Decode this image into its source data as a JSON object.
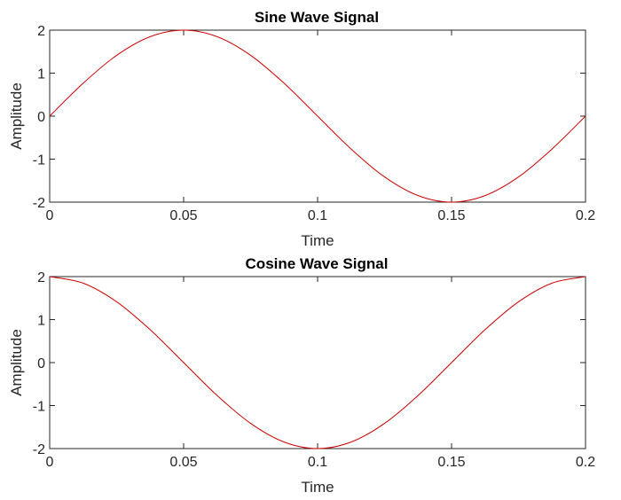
{
  "chart_data": [
    {
      "type": "line",
      "title": "Sine Wave Signal",
      "xlabel": "Time",
      "ylabel": "Amplitude",
      "xlim": [
        0,
        0.2
      ],
      "ylim": [
        -2,
        2
      ],
      "xticks": [
        0,
        0.05,
        0.1,
        0.15,
        0.2
      ],
      "xtick_labels": [
        "0",
        "0.05",
        "0.1",
        "0.15",
        "0.2"
      ],
      "yticks": [
        -2,
        -1,
        0,
        1,
        2
      ],
      "ytick_labels": [
        "-2",
        "-1",
        "0",
        "1",
        "2"
      ],
      "grid": false,
      "line_color": "#cc0000",
      "series": [
        {
          "x": [
            0,
            0.0125,
            0.025,
            0.0375,
            0.05,
            0.0625,
            0.075,
            0.0875,
            0.1,
            0.1125,
            0.125,
            0.1375,
            0.15,
            0.1625,
            0.175,
            0.1875,
            0.2
          ],
          "y": [
            0,
            0.765,
            1.414,
            1.848,
            2,
            1.848,
            1.414,
            0.765,
            0,
            -0.765,
            -1.414,
            -1.848,
            -2,
            -1.848,
            -1.414,
            -0.765,
            0
          ]
        }
      ]
    },
    {
      "type": "line",
      "title": "Cosine Wave Signal",
      "xlabel": "Time",
      "ylabel": "Amplitude",
      "xlim": [
        0,
        0.2
      ],
      "ylim": [
        -2,
        2
      ],
      "xticks": [
        0,
        0.05,
        0.1,
        0.15,
        0.2
      ],
      "xtick_labels": [
        "0",
        "0.05",
        "0.1",
        "0.15",
        "0.2"
      ],
      "yticks": [
        -2,
        -1,
        0,
        1,
        2
      ],
      "ytick_labels": [
        "-2",
        "-1",
        "0",
        "1",
        "2"
      ],
      "grid": false,
      "line_color": "#cc0000",
      "series": [
        {
          "x": [
            0,
            0.0125,
            0.025,
            0.0375,
            0.05,
            0.0625,
            0.075,
            0.0875,
            0.1,
            0.1125,
            0.125,
            0.1375,
            0.15,
            0.1625,
            0.175,
            0.1875,
            0.2
          ],
          "y": [
            2,
            1.848,
            1.414,
            0.765,
            0,
            -0.765,
            -1.414,
            -1.848,
            -2,
            -1.848,
            -1.414,
            -0.765,
            0,
            0.765,
            1.414,
            1.848,
            2
          ]
        }
      ]
    }
  ]
}
